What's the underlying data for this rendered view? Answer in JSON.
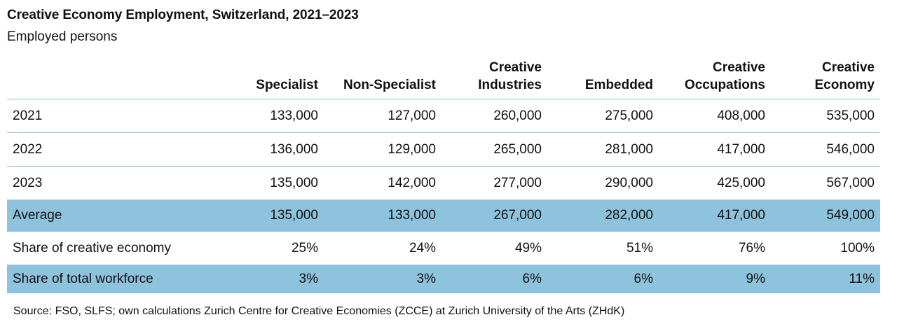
{
  "title": "Creative Economy Employment, Switzerland, 2021–2023",
  "subtitle": "Employed persons",
  "chart_data": {
    "type": "table",
    "columns": [
      "",
      "Specialist",
      "Non-Specialist",
      "Creative Industries",
      "Embedded",
      "Creative Occupations",
      "Creative Economy"
    ],
    "rows": [
      {
        "label": "2021",
        "cells": [
          "133,000",
          "127,000",
          "260,000",
          "275,000",
          "408,000",
          "535,000"
        ]
      },
      {
        "label": "2022",
        "cells": [
          "136,000",
          "129,000",
          "265,000",
          "281,000",
          "417,000",
          "546,000"
        ]
      },
      {
        "label": "2023",
        "cells": [
          "135,000",
          "142,000",
          "277,000",
          "290,000",
          "425,000",
          "567,000"
        ]
      },
      {
        "label": "Average",
        "cells": [
          "135,000",
          "133,000",
          "267,000",
          "282,000",
          "417,000",
          "549,000"
        ]
      },
      {
        "label": "Share of creative economy",
        "cells": [
          "25%",
          "24%",
          "49%",
          "51%",
          "76%",
          "100%"
        ]
      },
      {
        "label": "Share of total workforce",
        "cells": [
          "3%",
          "3%",
          "6%",
          "6%",
          "9%",
          "11%"
        ]
      }
    ],
    "highlighted_rows": [
      "Average",
      "Share of total workforce"
    ],
    "colors": {
      "highlight": "#8ec3dd",
      "divider": "#8cc0dc"
    }
  },
  "source": "Source: FSO, SLFS; own calculations Zurich Centre for Creative Economies (ZCCE) at Zurich University of the Arts (ZHdK)"
}
